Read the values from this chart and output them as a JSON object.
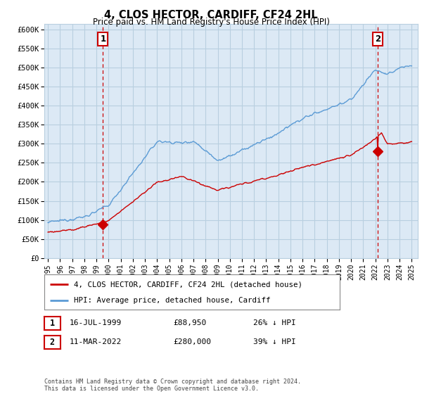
{
  "title": "4, CLOS HECTOR, CARDIFF, CF24 2HL",
  "subtitle": "Price paid vs. HM Land Registry's House Price Index (HPI)",
  "ylabel_ticks": [
    "£0",
    "£50K",
    "£100K",
    "£150K",
    "£200K",
    "£250K",
    "£300K",
    "£350K",
    "£400K",
    "£450K",
    "£500K",
    "£550K",
    "£600K"
  ],
  "ytick_values": [
    0,
    50000,
    100000,
    150000,
    200000,
    250000,
    300000,
    350000,
    400000,
    450000,
    500000,
    550000,
    600000
  ],
  "ylim": [
    0,
    615000
  ],
  "xlim_start": 1994.7,
  "xlim_end": 2025.5,
  "hpi_color": "#5b9bd5",
  "hpi_fill_color": "#dce9f5",
  "sale_color": "#cc0000",
  "bg_color": "#ffffff",
  "plot_bg_color": "#dce9f5",
  "grid_color": "#b8cfe0",
  "sale1_x": 1999.54,
  "sale1_y": 88950,
  "sale2_x": 2022.19,
  "sale2_y": 280000,
  "annotation1_label": "1",
  "annotation2_label": "2",
  "legend_sale_label": "4, CLOS HECTOR, CARDIFF, CF24 2HL (detached house)",
  "legend_hpi_label": "HPI: Average price, detached house, Cardiff",
  "table_row1": [
    "1",
    "16-JUL-1999",
    "£88,950",
    "26% ↓ HPI"
  ],
  "table_row2": [
    "2",
    "11-MAR-2022",
    "£280,000",
    "39% ↓ HPI"
  ],
  "footer": "Contains HM Land Registry data © Crown copyright and database right 2024.\nThis data is licensed under the Open Government Licence v3.0.",
  "dashed_line1_x": 1999.54,
  "dashed_line2_x": 2022.19,
  "xtick_years": [
    1995,
    1996,
    1997,
    1998,
    1999,
    2000,
    2001,
    2002,
    2003,
    2004,
    2005,
    2006,
    2007,
    2008,
    2009,
    2010,
    2011,
    2012,
    2013,
    2014,
    2015,
    2016,
    2017,
    2018,
    2019,
    2020,
    2021,
    2022,
    2023,
    2024,
    2025
  ]
}
